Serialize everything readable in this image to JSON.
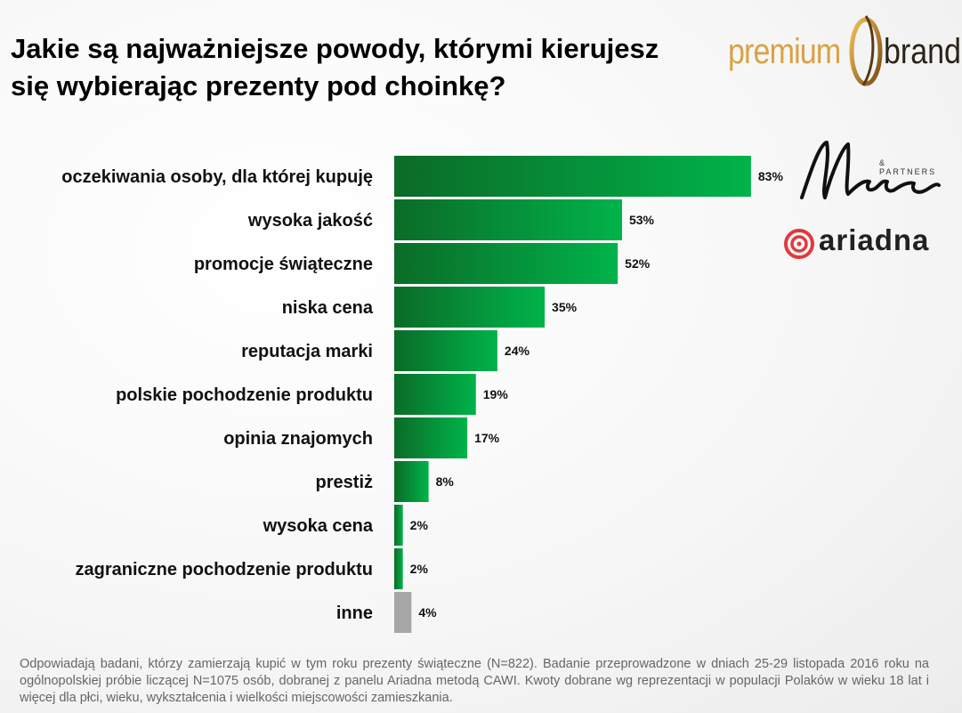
{
  "title": "Jakie są najważniejsze powody, którymi kierujesz się wybierając prezenty pod choinkę?",
  "logos": {
    "premium_brand": {
      "word1": "premium",
      "word2": "brand"
    },
    "maison": {
      "word": "Maison",
      "subtitle": "& PARTNERS"
    },
    "ariadna": {
      "word": "ariadna"
    }
  },
  "colors": {
    "bar_dark": "#0b6b27",
    "bar_light": "#00b34a",
    "bar_other": "#a6a6a6",
    "title": "#000000",
    "footnote": "#666666"
  },
  "chart_data": {
    "type": "bar",
    "orientation": "horizontal",
    "categories": [
      "oczekiwania osoby, dla której kupuję",
      "wysoka jakość",
      "promocje świąteczne",
      "niska cena",
      "reputacja marki",
      "polskie pochodzenie produktu",
      "opinia znajomych",
      "prestiż",
      "wysoka cena",
      "zagraniczne pochodzenie produktu",
      "inne"
    ],
    "values": [
      83,
      53,
      52,
      35,
      24,
      19,
      17,
      8,
      2,
      2,
      4
    ],
    "value_labels": [
      "83%",
      "53%",
      "52%",
      "35%",
      "24%",
      "19%",
      "17%",
      "8%",
      "2%",
      "2%",
      "4%"
    ],
    "unit": "%",
    "xlim": [
      0,
      100
    ],
    "grid": false,
    "legend": "none"
  },
  "footnote": "Odpowiadają badani, którzy zamierzają kupić w tym roku prezenty świąteczne (N=822). Badanie przeprowadzone w dniach 25-29 listopada 2016 roku na ogólnopolskiej próbie liczącej N=1075 osób, dobranej z panelu Ariadna metodą CAWI. Kwoty dobrane wg reprezentacji w populacji Polaków w wieku 18 lat i więcej dla płci, wieku, wykształcenia i wielkości miejscowości zamieszkania."
}
